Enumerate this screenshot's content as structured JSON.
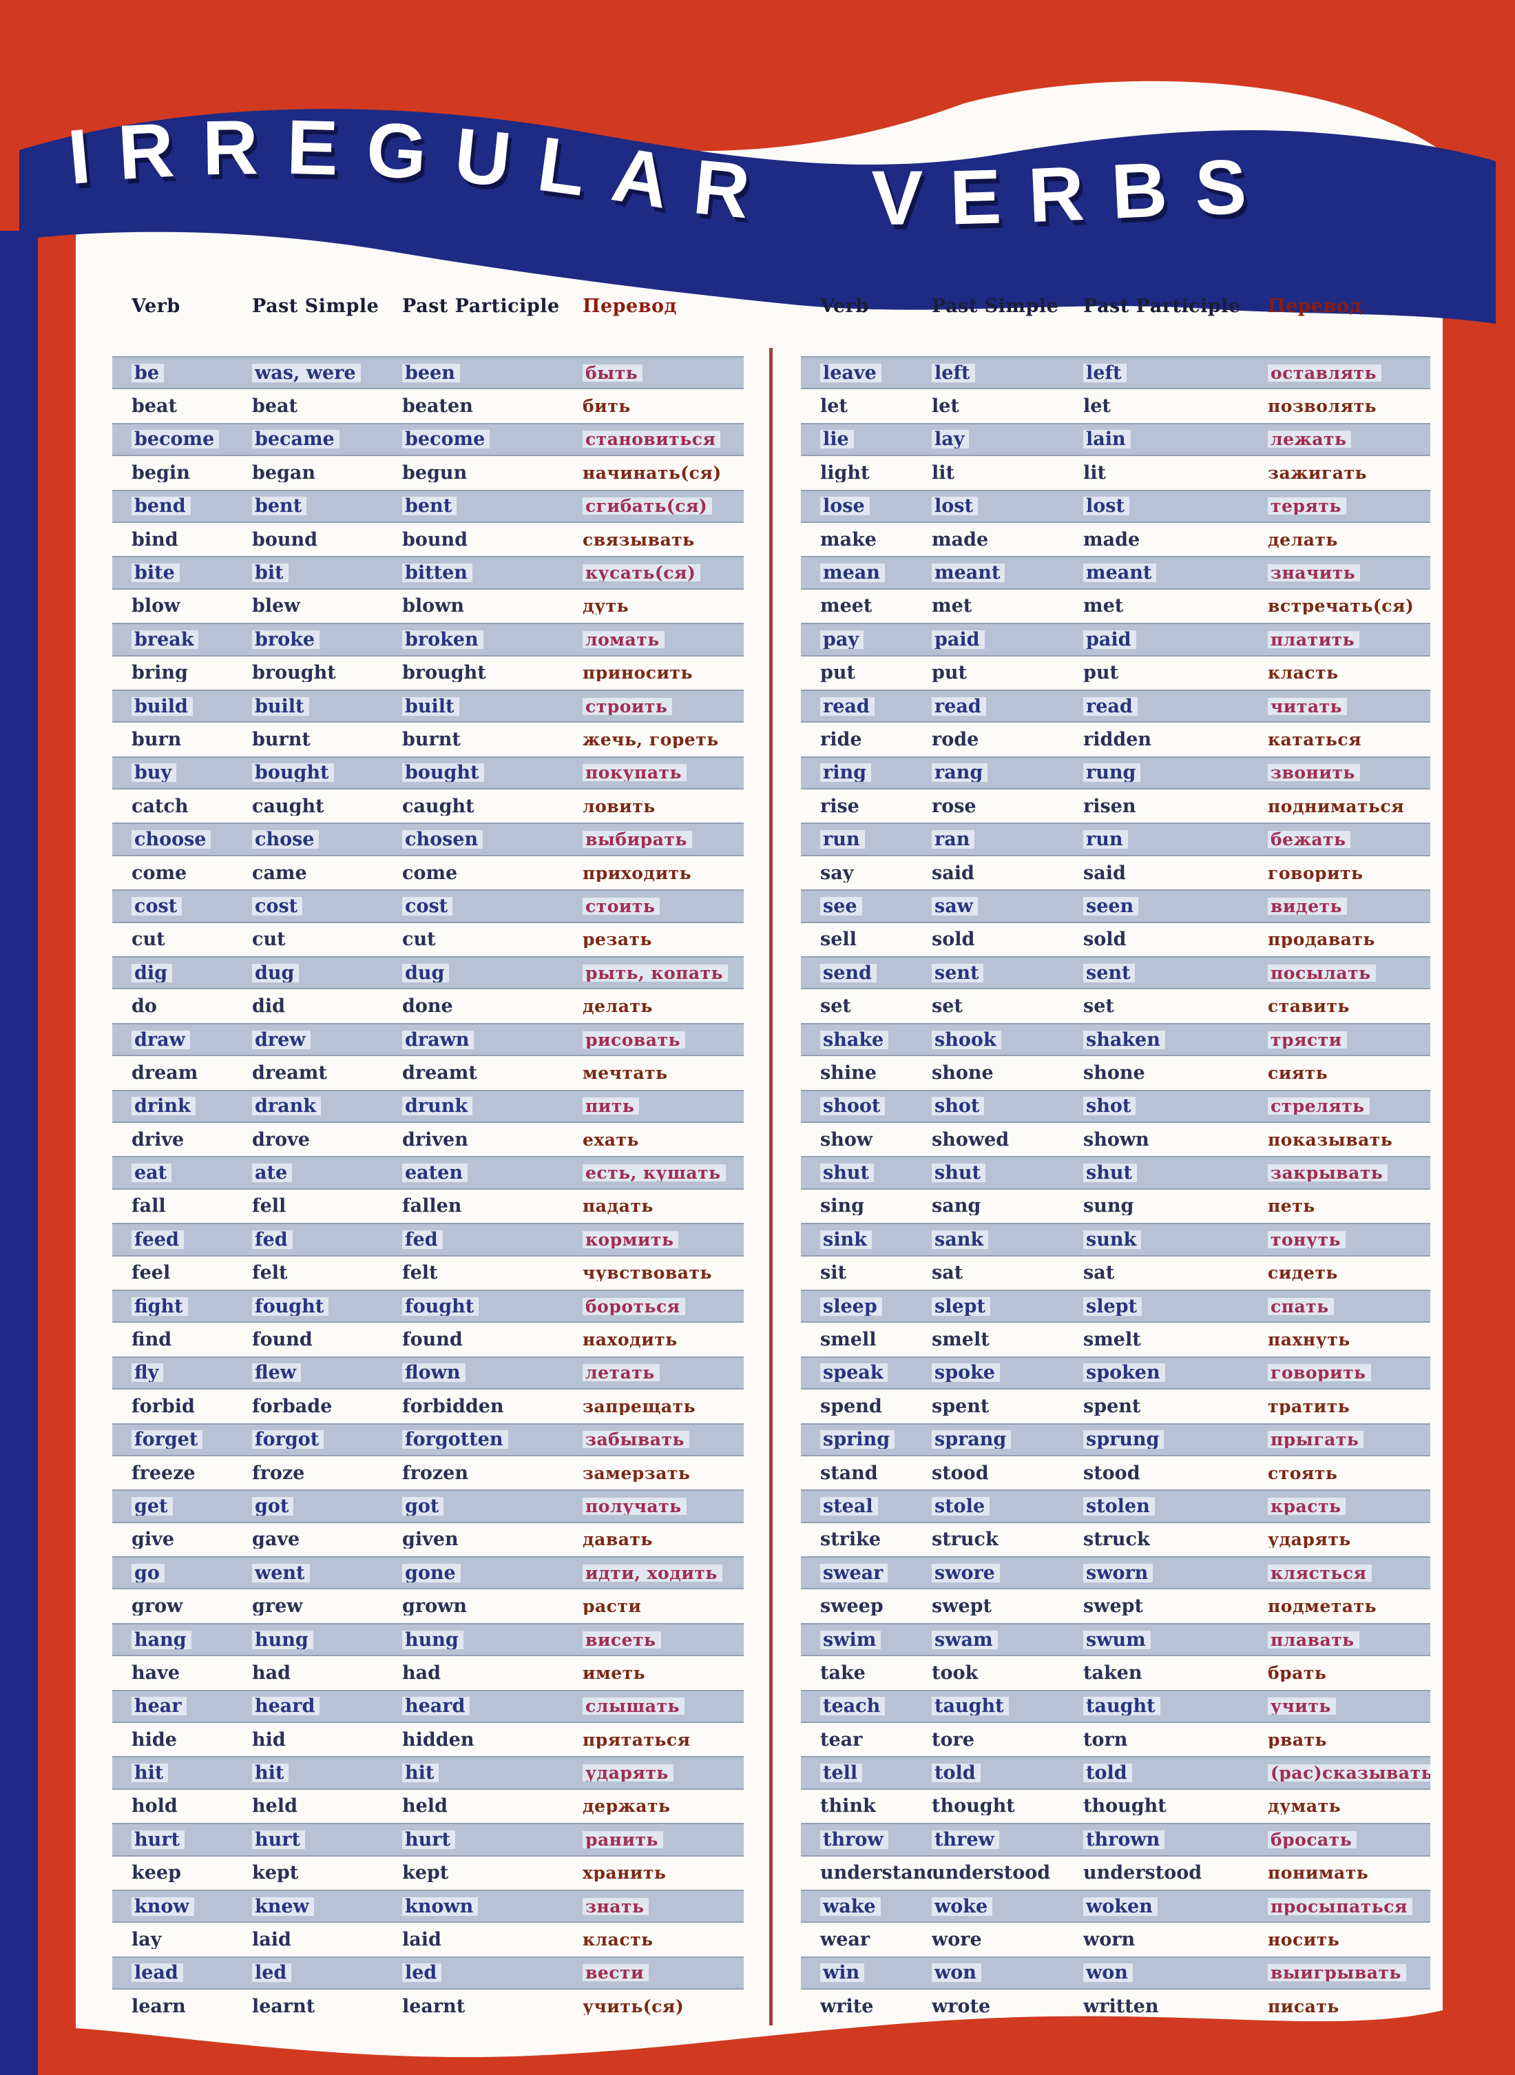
{
  "title": "IRREGULAR VERBS",
  "table_headers": [
    "Verb",
    "Past Simple",
    "Past Participle",
    "Перевод"
  ],
  "colors": {
    "background_red": "#d13a20",
    "banner_navy": "#1e2a84",
    "row_shade": "#b7c2d4",
    "english_blue": "#27357f",
    "english_dark": "#2a3055",
    "translation_dark": "#7c2815",
    "translation_bright": "#a12d50",
    "header_dark": "#1b1e38",
    "header_red": "#8c1d10",
    "divider_red": "#a93f33"
  },
  "left_table": [
    [
      "be",
      "was, were",
      "been",
      "быть"
    ],
    [
      "beat",
      "beat",
      "beaten",
      "бить"
    ],
    [
      "become",
      "became",
      "become",
      "становиться"
    ],
    [
      "begin",
      "began",
      "begun",
      "начинать(ся)"
    ],
    [
      "bend",
      "bent",
      "bent",
      "сгибать(ся)"
    ],
    [
      "bind",
      "bound",
      "bound",
      "связывать"
    ],
    [
      "bite",
      "bit",
      "bitten",
      "кусать(ся)"
    ],
    [
      "blow",
      "blew",
      "blown",
      "дуть"
    ],
    [
      "break",
      "broke",
      "broken",
      "ломать"
    ],
    [
      "bring",
      "brought",
      "brought",
      "приносить"
    ],
    [
      "build",
      "built",
      "built",
      "строить"
    ],
    [
      "burn",
      "burnt",
      "burnt",
      "жечь, гореть"
    ],
    [
      "buy",
      "bought",
      "bought",
      "покупать"
    ],
    [
      "catch",
      "caught",
      "caught",
      "ловить"
    ],
    [
      "choose",
      "chose",
      "chosen",
      "выбирать"
    ],
    [
      "come",
      "came",
      "come",
      "приходить"
    ],
    [
      "cost",
      "cost",
      "cost",
      "стоить"
    ],
    [
      "cut",
      "cut",
      "cut",
      "резать"
    ],
    [
      "dig",
      "dug",
      "dug",
      "рыть, копать"
    ],
    [
      "do",
      "did",
      "done",
      "делать"
    ],
    [
      "draw",
      "drew",
      "drawn",
      "рисовать"
    ],
    [
      "dream",
      "dreamt",
      "dreamt",
      "мечтать"
    ],
    [
      "drink",
      "drank",
      "drunk",
      "пить"
    ],
    [
      "drive",
      "drove",
      "driven",
      "ехать"
    ],
    [
      "eat",
      "ate",
      "eaten",
      "есть, кушать"
    ],
    [
      "fall",
      "fell",
      "fallen",
      "падать"
    ],
    [
      "feed",
      "fed",
      "fed",
      "кормить"
    ],
    [
      "feel",
      "felt",
      "felt",
      "чувствовать"
    ],
    [
      "fight",
      "fought",
      "fought",
      "бороться"
    ],
    [
      "find",
      "found",
      "found",
      "находить"
    ],
    [
      "fly",
      "flew",
      "flown",
      "летать"
    ],
    [
      "forbid",
      "forbade",
      "forbidden",
      "запрещать"
    ],
    [
      "forget",
      "forgot",
      "forgotten",
      "забывать"
    ],
    [
      "freeze",
      "froze",
      "frozen",
      "замерзать"
    ],
    [
      "get",
      "got",
      "got",
      "получать"
    ],
    [
      "give",
      "gave",
      "given",
      "давать"
    ],
    [
      "go",
      "went",
      "gone",
      "идти, ходить"
    ],
    [
      "grow",
      "grew",
      "grown",
      "расти"
    ],
    [
      "hang",
      "hung",
      "hung",
      "висеть"
    ],
    [
      "have",
      "had",
      "had",
      "иметь"
    ],
    [
      "hear",
      "heard",
      "heard",
      "слышать"
    ],
    [
      "hide",
      "hid",
      "hidden",
      "прятаться"
    ],
    [
      "hit",
      "hit",
      "hit",
      "ударять"
    ],
    [
      "hold",
      "held",
      "held",
      "держать"
    ],
    [
      "hurt",
      "hurt",
      "hurt",
      "ранить"
    ],
    [
      "keep",
      "kept",
      "kept",
      "хранить"
    ],
    [
      "know",
      "knew",
      "known",
      "знать"
    ],
    [
      "lay",
      "laid",
      "laid",
      "класть"
    ],
    [
      "lead",
      "led",
      "led",
      "вести"
    ],
    [
      "learn",
      "learnt",
      "learnt",
      "учить(ся)"
    ]
  ],
  "right_table": [
    [
      "leave",
      "left",
      "left",
      "оставлять"
    ],
    [
      "let",
      "let",
      "let",
      "позволять"
    ],
    [
      "lie",
      "lay",
      "lain",
      "лежать"
    ],
    [
      "light",
      "lit",
      "lit",
      "зажигать"
    ],
    [
      "lose",
      "lost",
      "lost",
      "терять"
    ],
    [
      "make",
      "made",
      "made",
      "делать"
    ],
    [
      "mean",
      "meant",
      "meant",
      "значить"
    ],
    [
      "meet",
      "met",
      "met",
      "встречать(ся)"
    ],
    [
      "pay",
      "paid",
      "paid",
      "платить"
    ],
    [
      "put",
      "put",
      "put",
      "класть"
    ],
    [
      "read",
      "read",
      "read",
      "читать"
    ],
    [
      "ride",
      "rode",
      "ridden",
      "кататься"
    ],
    [
      "ring",
      "rang",
      "rung",
      "звонить"
    ],
    [
      "rise",
      "rose",
      "risen",
      "подниматься"
    ],
    [
      "run",
      "ran",
      "run",
      "бежать"
    ],
    [
      "say",
      "said",
      "said",
      "говорить"
    ],
    [
      "see",
      "saw",
      "seen",
      "видеть"
    ],
    [
      "sell",
      "sold",
      "sold",
      "продавать"
    ],
    [
      "send",
      "sent",
      "sent",
      "посылать"
    ],
    [
      "set",
      "set",
      "set",
      "ставить"
    ],
    [
      "shake",
      "shook",
      "shaken",
      "трясти"
    ],
    [
      "shine",
      "shone",
      "shone",
      "сиять"
    ],
    [
      "shoot",
      "shot",
      "shot",
      "стрелять"
    ],
    [
      "show",
      "showed",
      "shown",
      "показывать"
    ],
    [
      "shut",
      "shut",
      "shut",
      "закрывать"
    ],
    [
      "sing",
      "sang",
      "sung",
      "петь"
    ],
    [
      "sink",
      "sank",
      "sunk",
      "тонуть"
    ],
    [
      "sit",
      "sat",
      "sat",
      "сидеть"
    ],
    [
      "sleep",
      "slept",
      "slept",
      "спать"
    ],
    [
      "smell",
      "smelt",
      "smelt",
      "пахнуть"
    ],
    [
      "speak",
      "spoke",
      "spoken",
      "говорить"
    ],
    [
      "spend",
      "spent",
      "spent",
      "тратить"
    ],
    [
      "spring",
      "sprang",
      "sprung",
      "прыгать"
    ],
    [
      "stand",
      "stood",
      "stood",
      "стоять"
    ],
    [
      "steal",
      "stole",
      "stolen",
      "красть"
    ],
    [
      "strike",
      "struck",
      "struck",
      "ударять"
    ],
    [
      "swear",
      "swore",
      "sworn",
      "клясться"
    ],
    [
      "sweep",
      "swept",
      "swept",
      "подметать"
    ],
    [
      "swim",
      "swam",
      "swum",
      "плавать"
    ],
    [
      "take",
      "took",
      "taken",
      "брать"
    ],
    [
      "teach",
      "taught",
      "taught",
      "учить"
    ],
    [
      "tear",
      "tore",
      "torn",
      "рвать"
    ],
    [
      "tell",
      "told",
      "told",
      "(рас)сказывать"
    ],
    [
      "think",
      "thought",
      "thought",
      "думать"
    ],
    [
      "throw",
      "threw",
      "thrown",
      "бросать"
    ],
    [
      "understand",
      "understood",
      "understood",
      "понимать"
    ],
    [
      "wake",
      "woke",
      "woken",
      "просыпаться"
    ],
    [
      "wear",
      "wore",
      "worn",
      "носить"
    ],
    [
      "win",
      "won",
      "won",
      "выигрывать"
    ],
    [
      "write",
      "wrote",
      "written",
      "писать"
    ]
  ]
}
